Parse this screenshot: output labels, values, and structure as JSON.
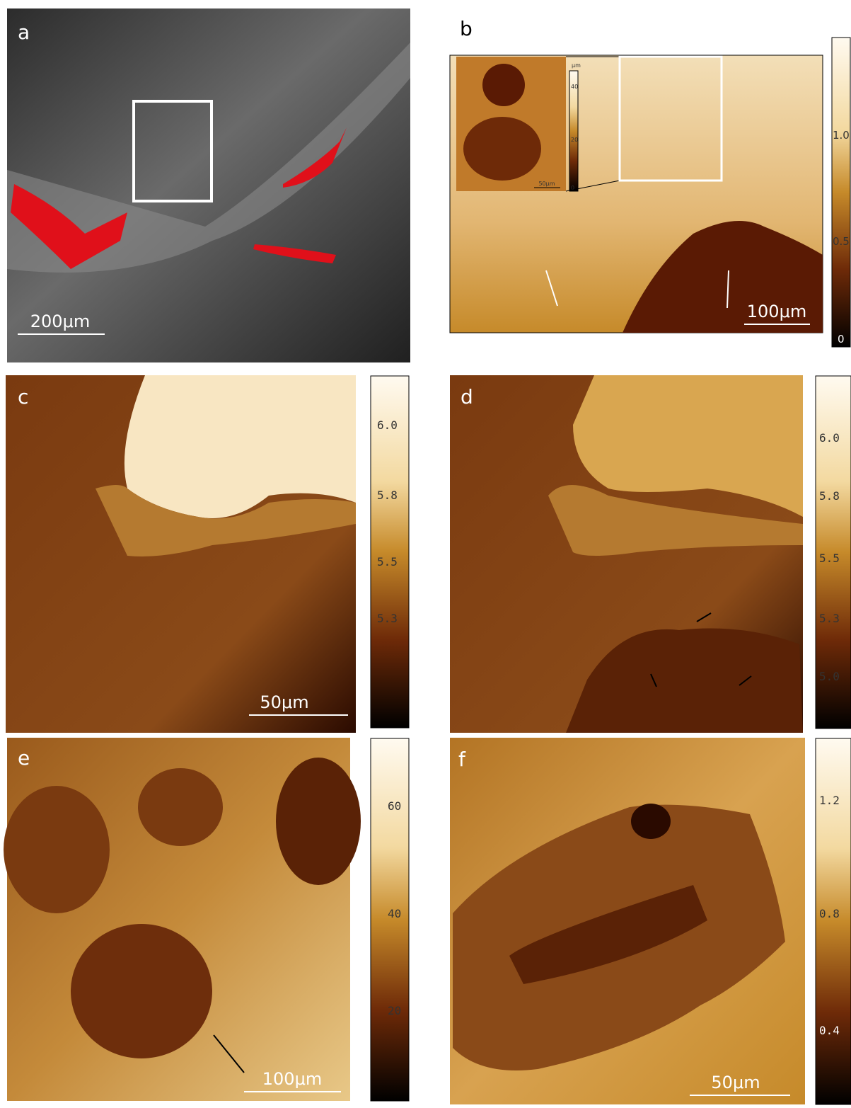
{
  "panels": [
    {
      "label": "a",
      "scale_bar": "200μm"
    },
    {
      "label": "b",
      "scale_bar": "100μm",
      "colorbar_ticks": [
        "1.0",
        "0.5",
        "0"
      ],
      "inset": {
        "scale_bar": "50μm",
        "colorbar_unit": "μm",
        "colorbar_ticks": [
          "40",
          "20",
          "0"
        ]
      }
    },
    {
      "label": "c",
      "scale_bar": "50μm",
      "colorbar_ticks": [
        "6.0",
        "5.8",
        "5.5",
        "5.3"
      ]
    },
    {
      "label": "d",
      "colorbar_ticks": [
        "6.0",
        "5.8",
        "5.5",
        "5.3",
        "5.0"
      ]
    },
    {
      "label": "e",
      "scale_bar": "100μm",
      "colorbar_ticks": [
        "60",
        "40",
        "20"
      ]
    },
    {
      "label": "f",
      "scale_bar": "50μm",
      "colorbar_ticks": [
        "1.2",
        "0.8",
        "0.4"
      ]
    }
  ]
}
